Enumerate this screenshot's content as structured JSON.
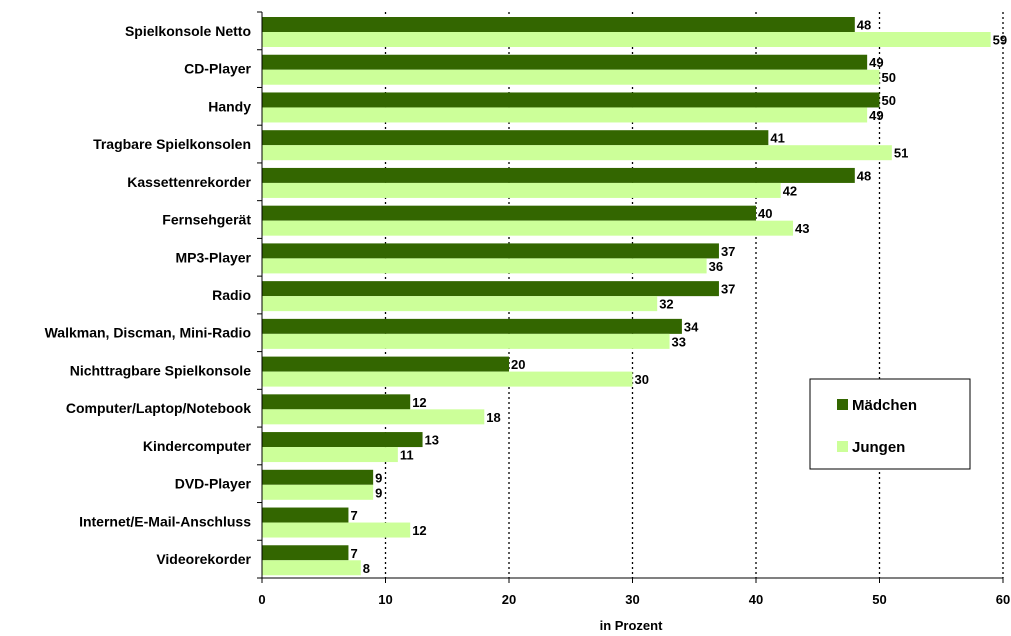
{
  "chart_data": {
    "type": "bar",
    "orientation": "horizontal",
    "categories": [
      "Spielkonsole Netto",
      "CD-Player",
      "Handy",
      "Tragbare Spielkonsolen",
      "Kassettenrekorder",
      "Fernsehgerät",
      "MP3-Player",
      "Radio",
      "Walkman, Discman, Mini-Radio",
      "Nichttragbare Spielkonsole",
      "Computer/Laptop/Notebook",
      "Kindercomputer",
      "DVD-Player",
      "Internet/E-Mail-Anschluss",
      "Videorekorder"
    ],
    "series": [
      {
        "name": "Mädchen",
        "color": "#336600",
        "values": [
          48,
          49,
          50,
          41,
          48,
          40,
          37,
          37,
          34,
          20,
          12,
          13,
          9,
          7,
          7
        ]
      },
      {
        "name": "Jungen",
        "color": "#ccff99",
        "values": [
          59,
          50,
          49,
          51,
          42,
          43,
          36,
          32,
          33,
          30,
          18,
          11,
          9,
          12,
          8
        ]
      }
    ],
    "xlabel": "in Prozent",
    "ylabel": "",
    "xlim": [
      0,
      60
    ],
    "xticks": [
      "0",
      "10",
      "20",
      "30",
      "40",
      "50",
      "60"
    ],
    "grid": "vertical dotted",
    "legend_position": "right"
  }
}
